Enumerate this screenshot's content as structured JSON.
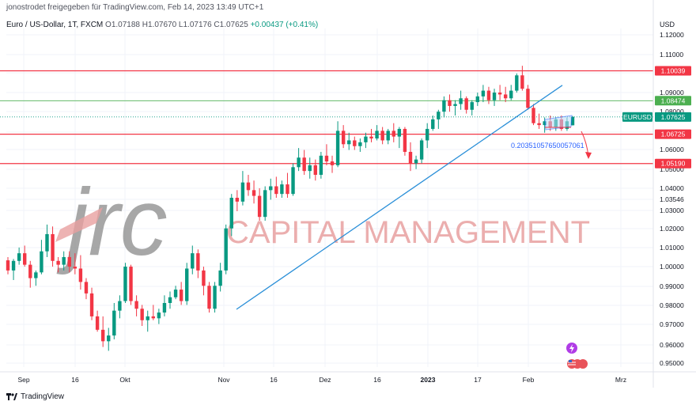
{
  "header": {
    "published_line": "jonostrodet freigegeben für TradingView.com, Feb 14, 2023 13:49 UTC+1",
    "symbol_desc": "Euro / US-Dollar, 1T, FXCM",
    "o": "O1.07188",
    "h": "H1.07670",
    "l": "L1.07176",
    "c": "C1.07625",
    "change": "+0.00437 (+0.41%)"
  },
  "watermark": {
    "logo_text": "jrc",
    "company": "CAPITAL MANAGEMENT"
  },
  "annotation": {
    "measure_text": "0.20351057650057061"
  },
  "footer": {
    "brand": "TradingView"
  },
  "colors": {
    "up": "#089981",
    "down": "#f23645",
    "trendline": "#2a8fd8",
    "resistance": "#f23645",
    "support_green": "#4caf50",
    "watermark_grey": "#8a8a8a",
    "watermark_red": "#e8a0a0"
  },
  "chart_data": {
    "type": "candlestick",
    "currency_label": "USD",
    "yaxis_ticks": [
      "1.12000",
      "1.11000",
      "1.10000",
      "1.09000",
      "1.08000",
      "1.07000",
      "1.06000",
      "1.05000",
      "1.04000",
      "1.03546",
      "1.03000",
      "1.02000",
      "1.01000",
      "1.00000",
      "0.99000",
      "0.98000",
      "0.97000",
      "0.96000",
      "0.95000"
    ],
    "xaxis_ticks": [
      "Sep",
      "16",
      "Okt",
      "Nov",
      "16",
      "Dez",
      "16",
      "2023",
      "17",
      "Feb",
      "Mrz"
    ],
    "ylim": [
      0.9455,
      1.1225
    ],
    "price_labels": [
      {
        "text": "1.10039",
        "value": 1.10039,
        "color": "#f23645"
      },
      {
        "text": "1.08474",
        "value": 1.08474,
        "color": "#4caf50"
      },
      {
        "text": "EURUSD",
        "value": 1.07625,
        "color": "#089981"
      },
      {
        "text": "1.07625",
        "value": 1.07625,
        "color": "#089981"
      },
      {
        "text": "1.06725",
        "value": 1.06725,
        "color": "#f23645"
      },
      {
        "text": "1.05190",
        "value": 1.0519,
        "color": "#f23645"
      }
    ],
    "horizontal_lines": [
      {
        "value": 1.10039,
        "color": "#f23645"
      },
      {
        "value": 1.08474,
        "color": "#4caf50"
      },
      {
        "value": 1.06725,
        "color": "#f23645"
      },
      {
        "value": 1.0519,
        "color": "#f23645"
      }
    ],
    "trendline": {
      "from": [
        1.9,
        0.9757
      ],
      "to": [
        8.2,
        1.0928
      ]
    },
    "candles_note": "Daily EURUSD candles from late Aug 2022 to mid Feb 2023, values estimated",
    "candles": [
      [
        1.0013,
        1.003,
        0.994,
        0.996
      ],
      [
        0.996,
        1.002,
        0.991,
        1.001
      ],
      [
        1.001,
        1.008,
        0.999,
        1.005
      ],
      [
        1.005,
        1.009,
        0.998,
        0.999
      ],
      [
        0.999,
        1.001,
        0.987,
        0.992
      ],
      [
        0.992,
        0.996,
        0.988,
        0.995
      ],
      [
        0.995,
        1.012,
        0.994,
        1.006
      ],
      [
        1.006,
        1.02,
        1.003,
        1.015
      ],
      [
        1.015,
        1.019,
        0.998,
        1.001
      ],
      [
        1.001,
        1.003,
        0.995,
        0.999
      ],
      [
        0.999,
        1.006,
        0.996,
        1.003
      ],
      [
        1.003,
        1.006,
        0.995,
        0.998
      ],
      [
        0.998,
        1.005,
        0.994,
        0.997
      ],
      [
        0.997,
        1.004,
        0.986,
        0.99
      ],
      [
        0.99,
        0.992,
        0.981,
        0.984
      ],
      [
        0.984,
        0.987,
        0.97,
        0.972
      ],
      [
        0.972,
        0.975,
        0.964,
        0.965
      ],
      [
        0.965,
        0.972,
        0.956,
        0.959
      ],
      [
        0.959,
        0.966,
        0.954,
        0.962
      ],
      [
        0.962,
        0.979,
        0.96,
        0.975
      ],
      [
        0.975,
        0.983,
        0.971,
        0.98
      ],
      [
        0.98,
        1.0,
        0.979,
        0.998
      ],
      [
        0.998,
        0.999,
        0.978,
        0.98
      ],
      [
        0.98,
        0.983,
        0.972,
        0.976
      ],
      [
        0.976,
        0.978,
        0.967,
        0.97
      ],
      [
        0.97,
        0.975,
        0.964,
        0.972
      ],
      [
        0.972,
        0.978,
        0.97,
        0.971
      ],
      [
        0.971,
        0.976,
        0.968,
        0.974
      ],
      [
        0.974,
        0.983,
        0.972,
        0.979
      ],
      [
        0.979,
        0.985,
        0.976,
        0.982
      ],
      [
        0.982,
        0.988,
        0.981,
        0.986
      ],
      [
        0.986,
        0.99,
        0.978,
        0.98
      ],
      [
        0.98,
        1.0,
        0.978,
        0.997
      ],
      [
        0.997,
        1.009,
        0.994,
        1.005
      ],
      [
        1.005,
        1.007,
        0.992,
        0.996
      ],
      [
        0.996,
        0.998,
        0.983,
        0.988
      ],
      [
        0.988,
        0.99,
        0.974,
        0.976
      ],
      [
        0.976,
        0.99,
        0.974,
        0.988
      ],
      [
        0.988,
        1.0,
        0.985,
        0.996
      ],
      [
        0.996,
        1.02,
        0.994,
        1.018
      ],
      [
        1.018,
        1.036,
        1.014,
        1.034
      ],
      [
        1.034,
        1.038,
        1.027,
        1.032
      ],
      [
        1.032,
        1.048,
        1.03,
        1.042
      ],
      [
        1.042,
        1.046,
        1.035,
        1.038
      ],
      [
        1.038,
        1.043,
        1.031,
        1.035
      ],
      [
        1.035,
        1.039,
        1.022,
        1.024
      ],
      [
        1.024,
        1.04,
        1.022,
        1.038
      ],
      [
        1.038,
        1.044,
        1.033,
        1.04
      ],
      [
        1.04,
        1.045,
        1.034,
        1.036
      ],
      [
        1.036,
        1.043,
        1.034,
        1.041
      ],
      [
        1.041,
        1.047,
        1.034,
        1.036
      ],
      [
        1.036,
        1.052,
        1.035,
        1.05
      ],
      [
        1.05,
        1.06,
        1.048,
        1.055
      ],
      [
        1.055,
        1.059,
        1.046,
        1.048
      ],
      [
        1.048,
        1.055,
        1.044,
        1.051
      ],
      [
        1.051,
        1.054,
        1.043,
        1.046
      ],
      [
        1.046,
        1.058,
        1.044,
        1.056
      ],
      [
        1.056,
        1.062,
        1.051,
        1.053
      ],
      [
        1.053,
        1.056,
        1.047,
        1.051
      ],
      [
        1.051,
        1.074,
        1.05,
        1.069
      ],
      [
        1.069,
        1.072,
        1.06,
        1.062
      ],
      [
        1.062,
        1.068,
        1.059,
        1.064
      ],
      [
        1.064,
        1.066,
        1.059,
        1.061
      ],
      [
        1.061,
        1.065,
        1.058,
        1.063
      ],
      [
        1.063,
        1.068,
        1.06,
        1.066
      ],
      [
        1.066,
        1.07,
        1.063,
        1.065
      ],
      [
        1.065,
        1.072,
        1.064,
        1.069
      ],
      [
        1.069,
        1.071,
        1.062,
        1.064
      ],
      [
        1.064,
        1.07,
        1.062,
        1.069
      ],
      [
        1.069,
        1.073,
        1.063,
        1.066
      ],
      [
        1.066,
        1.071,
        1.06,
        1.07
      ],
      [
        1.07,
        1.071,
        1.056,
        1.058
      ],
      [
        1.058,
        1.063,
        1.048,
        1.052
      ],
      [
        1.052,
        1.056,
        1.049,
        1.054
      ],
      [
        1.054,
        1.065,
        1.052,
        1.064
      ],
      [
        1.064,
        1.073,
        1.06,
        1.07
      ],
      [
        1.07,
        1.077,
        1.069,
        1.075
      ],
      [
        1.075,
        1.08,
        1.07,
        1.079
      ],
      [
        1.079,
        1.087,
        1.076,
        1.085
      ],
      [
        1.085,
        1.088,
        1.079,
        1.082
      ],
      [
        1.082,
        1.085,
        1.077,
        1.083
      ],
      [
        1.083,
        1.09,
        1.08,
        1.086
      ],
      [
        1.086,
        1.087,
        1.078,
        1.08
      ],
      [
        1.08,
        1.085,
        1.077,
        1.084
      ],
      [
        1.084,
        1.089,
        1.082,
        1.087
      ],
      [
        1.087,
        1.093,
        1.084,
        1.09
      ],
      [
        1.09,
        1.092,
        1.083,
        1.085
      ],
      [
        1.085,
        1.091,
        1.082,
        1.089
      ],
      [
        1.089,
        1.093,
        1.085,
        1.088
      ],
      [
        1.088,
        1.092,
        1.084,
        1.086
      ],
      [
        1.086,
        1.093,
        1.085,
        1.09
      ],
      [
        1.09,
        1.099,
        1.089,
        1.098
      ],
      [
        1.098,
        1.103,
        1.09,
        1.091
      ],
      [
        1.091,
        1.093,
        1.08,
        1.081
      ],
      [
        1.081,
        1.083,
        1.072,
        1.073
      ],
      [
        1.073,
        1.078,
        1.07,
        1.072
      ],
      [
        1.072,
        1.076,
        1.068,
        1.074
      ],
      [
        1.074,
        1.077,
        1.069,
        1.071
      ],
      [
        1.071,
        1.076,
        1.069,
        1.075
      ],
      [
        1.075,
        1.077,
        1.069,
        1.07
      ],
      [
        1.07,
        1.076,
        1.069,
        1.074
      ],
      [
        1.0719,
        1.0767,
        1.0718,
        1.0763
      ]
    ]
  }
}
